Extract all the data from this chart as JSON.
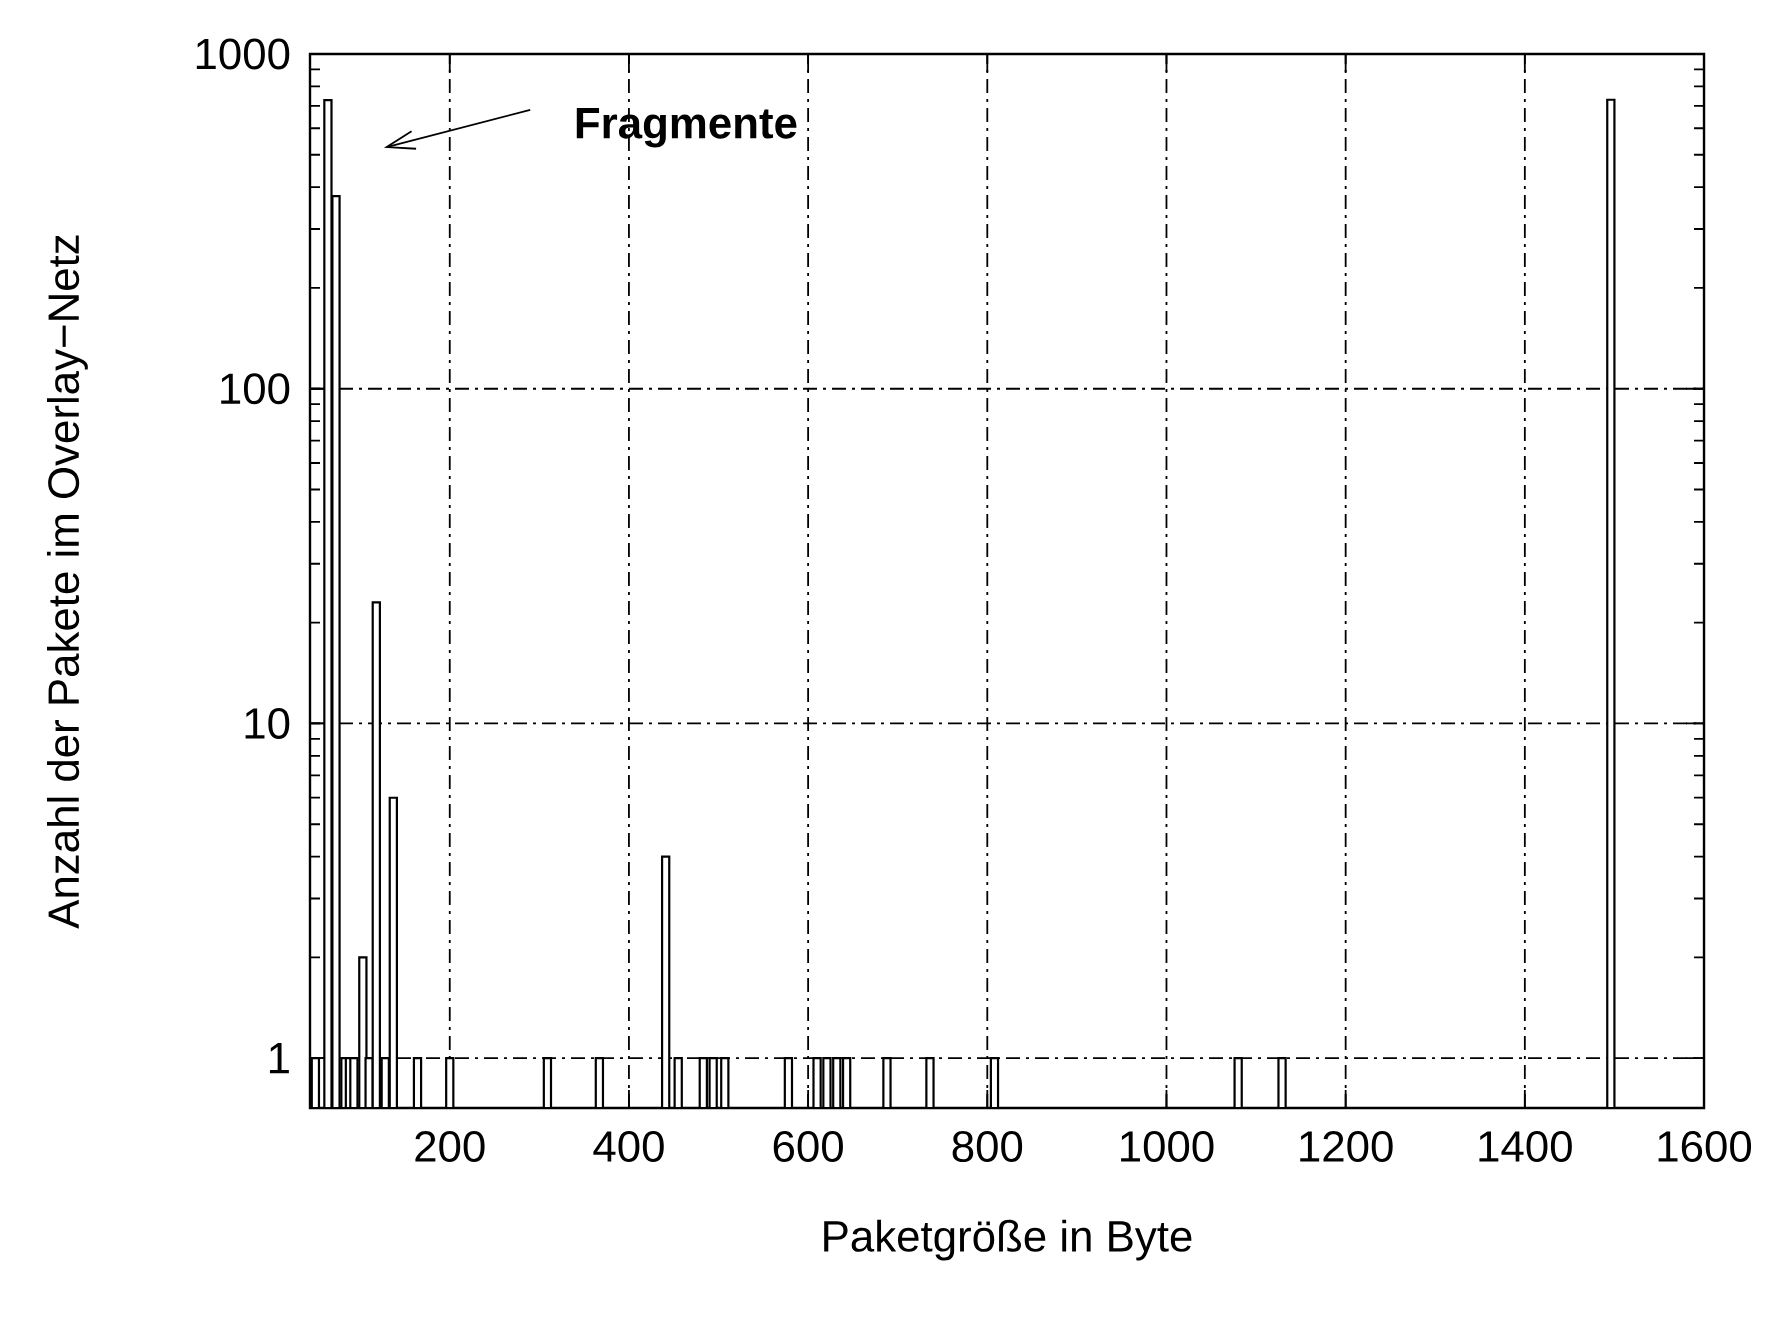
{
  "chart_data": {
    "type": "bar",
    "xlabel": "Paketgröße in Byte",
    "ylabel": "Anzahl der Pakete im Overlay−Netz",
    "x": [
      50,
      64,
      73,
      83,
      88,
      93,
      103,
      110,
      118,
      128,
      137,
      164,
      200,
      309,
      367,
      441,
      455,
      483,
      494,
      507,
      578,
      610,
      621,
      632,
      643,
      688,
      736,
      808,
      1080,
      1129,
      1496
    ],
    "values": [
      1,
      728,
      376,
      1,
      1,
      1,
      2,
      1,
      23,
      1,
      6,
      1,
      1,
      1,
      1,
      4,
      1,
      1,
      1,
      1,
      1,
      1,
      1,
      1,
      1,
      1,
      1,
      1,
      1,
      1,
      730
    ],
    "color": "#ffffff",
    "log": "y",
    "xlim": [
      44,
      1600
    ],
    "ylim": [
      0.71,
      1000
    ],
    "xticks": [
      200,
      400,
      600,
      800,
      1000,
      1200,
      1400,
      1600
    ],
    "yticks": [
      1,
      10,
      100,
      1000
    ],
    "grid": true,
    "annotations": [
      "**Fragmente**"
    ]
  }
}
